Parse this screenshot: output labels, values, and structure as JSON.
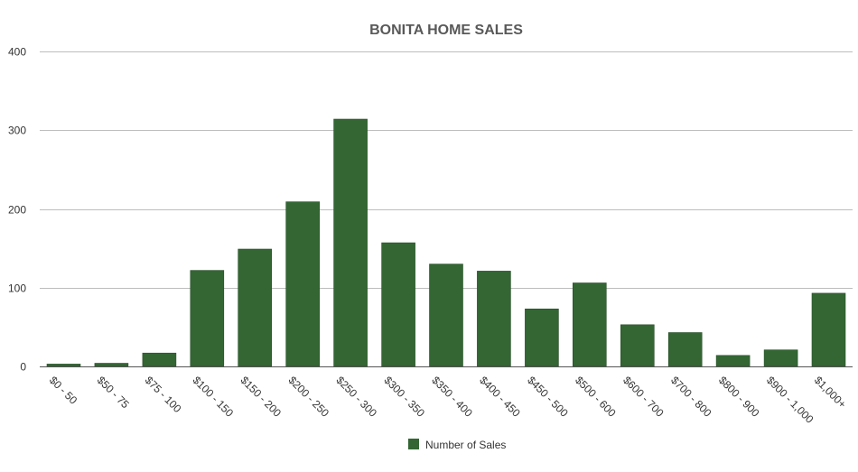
{
  "chart_data": {
    "type": "bar",
    "title": "BONITA HOME SALES",
    "xlabel": "",
    "ylabel": "",
    "categories": [
      "$0 - 50",
      "$50 - 75",
      "$75 - 100",
      "$100 - 150",
      "$150 - 200",
      "$200 - 250",
      "$250 - 300",
      "$300 - 350",
      "$350 - 400",
      "$400 - 450",
      "$450 - 500",
      "$500 - 600",
      "$600 - 700",
      "$700 - 800",
      "$800 - 900",
      "$900 - 1,000",
      "$1,000+"
    ],
    "series": [
      {
        "name": "Number of Sales",
        "color": "#336633",
        "values": [
          3,
          4,
          17,
          122,
          149,
          209,
          314,
          157,
          130,
          121,
          73,
          106,
          53,
          43,
          14,
          21,
          93
        ]
      }
    ],
    "ylim": [
      0,
      400
    ],
    "yticks": [
      0,
      100,
      200,
      300,
      400
    ],
    "grid": true,
    "legend_position": "bottom-center"
  }
}
